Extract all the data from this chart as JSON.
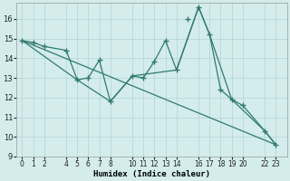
{
  "xlabel": "Humidex (Indice chaleur)",
  "line1_x": [
    0,
    1,
    2,
    4,
    5,
    6,
    7,
    8,
    10,
    11,
    12,
    13,
    14,
    16,
    17,
    18,
    19,
    20,
    22,
    23
  ],
  "line1_y": [
    14.9,
    14.8,
    14.6,
    14.4,
    12.9,
    13.0,
    13.9,
    11.8,
    13.1,
    13.0,
    13.85,
    14.9,
    13.4,
    16.6,
    15.2,
    12.4,
    11.9,
    11.6,
    10.3,
    9.6
  ],
  "line2_x": [
    0,
    23
  ],
  "line2_y": [
    14.9,
    9.6
  ],
  "line3_x": [
    0,
    5,
    8,
    10,
    14,
    16,
    17,
    19,
    22,
    23
  ],
  "line3_y": [
    14.9,
    12.9,
    11.8,
    13.1,
    13.4,
    16.6,
    15.2,
    11.9,
    10.3,
    9.6
  ],
  "peak_x": [
    15
  ],
  "peak_y": [
    16.0
  ],
  "color": "#317a6e",
  "bg_color": "#d4ecec",
  "grid_major_color": "#b8d8d8",
  "grid_minor_color": "#c8e4e4",
  "ylim": [
    9,
    16.8
  ],
  "xlim": [
    -0.5,
    24
  ],
  "yticks": [
    9,
    10,
    11,
    12,
    13,
    14,
    15,
    16
  ],
  "xtick_labels": [
    "0",
    "1",
    "2",
    "4",
    "5",
    "6",
    "7",
    "8",
    "10",
    "11",
    "12",
    "13",
    "14",
    "16",
    "17",
    "18",
    "19",
    "20",
    "22",
    "23"
  ],
  "xtick_pos": [
    0,
    1,
    2,
    4,
    5,
    6,
    7,
    8,
    10,
    11,
    12,
    13,
    14,
    16,
    17,
    18,
    19,
    20,
    22,
    23
  ],
  "figsize": [
    3.2,
    2.0
  ],
  "dpi": 100
}
